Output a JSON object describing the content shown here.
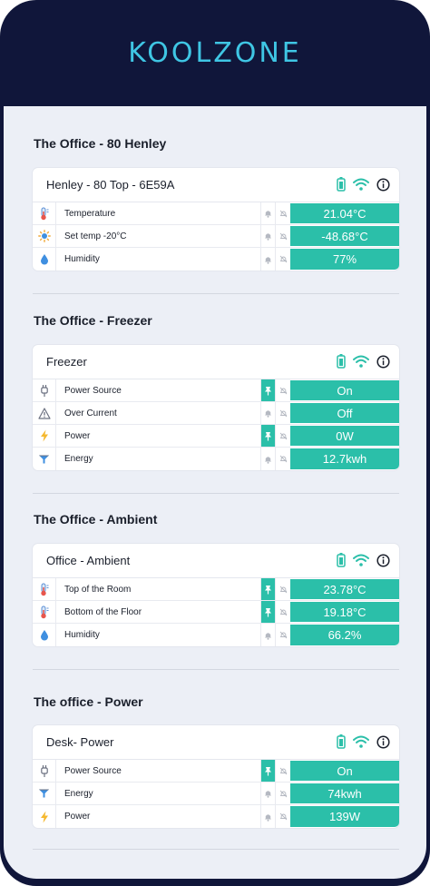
{
  "brand": {
    "logo": "KOOLZONE"
  },
  "colors": {
    "accent": "#2bbfa9",
    "header_bg": "#10163a",
    "logo": "#3fc6e4"
  },
  "groups": [
    {
      "title": "The Office - 80 Henley",
      "device": "Henley - 80 Top - 6E59A",
      "rows": [
        {
          "icon": "thermometer-icon",
          "label": "Temperature",
          "alert": "bell",
          "value": "21.04°C"
        },
        {
          "icon": "sun-icon",
          "label": "Set temp -20°C",
          "alert": "bell",
          "value": "-48.68°C"
        },
        {
          "icon": "droplet-icon",
          "label": "Humidity",
          "alert": "bell",
          "value": "77%"
        }
      ]
    },
    {
      "title": "The Office - Freezer",
      "device": "Freezer",
      "rows": [
        {
          "icon": "plug-icon",
          "label": "Power Source",
          "alert": "pin",
          "value": "On"
        },
        {
          "icon": "warning-icon",
          "label": "Over Current",
          "alert": "bell",
          "value": "Off"
        },
        {
          "icon": "lightning-icon",
          "label": "Power",
          "alert": "pin",
          "value": "0W"
        },
        {
          "icon": "energy-icon",
          "label": "Energy",
          "alert": "bell",
          "value": "12.7kwh"
        }
      ]
    },
    {
      "title": "The Office - Ambient",
      "device": "Office - Ambient",
      "rows": [
        {
          "icon": "thermometer-icon",
          "label": "Top of the Room",
          "alert": "pin",
          "value": "23.78°C"
        },
        {
          "icon": "thermometer-icon",
          "label": "Bottom of the Floor",
          "alert": "pin",
          "value": "19.18°C"
        },
        {
          "icon": "droplet-icon",
          "label": "Humidity",
          "alert": "bell",
          "value": "66.2%"
        }
      ]
    },
    {
      "title": "The office - Power",
      "device": "Desk- Power",
      "rows": [
        {
          "icon": "plug-icon",
          "label": "Power Source",
          "alert": "pin",
          "value": "On"
        },
        {
          "icon": "energy-icon",
          "label": "Energy",
          "alert": "bell",
          "value": "74kwh"
        },
        {
          "icon": "lightning-icon",
          "label": "Power",
          "alert": "bell",
          "value": "139W"
        }
      ]
    }
  ]
}
